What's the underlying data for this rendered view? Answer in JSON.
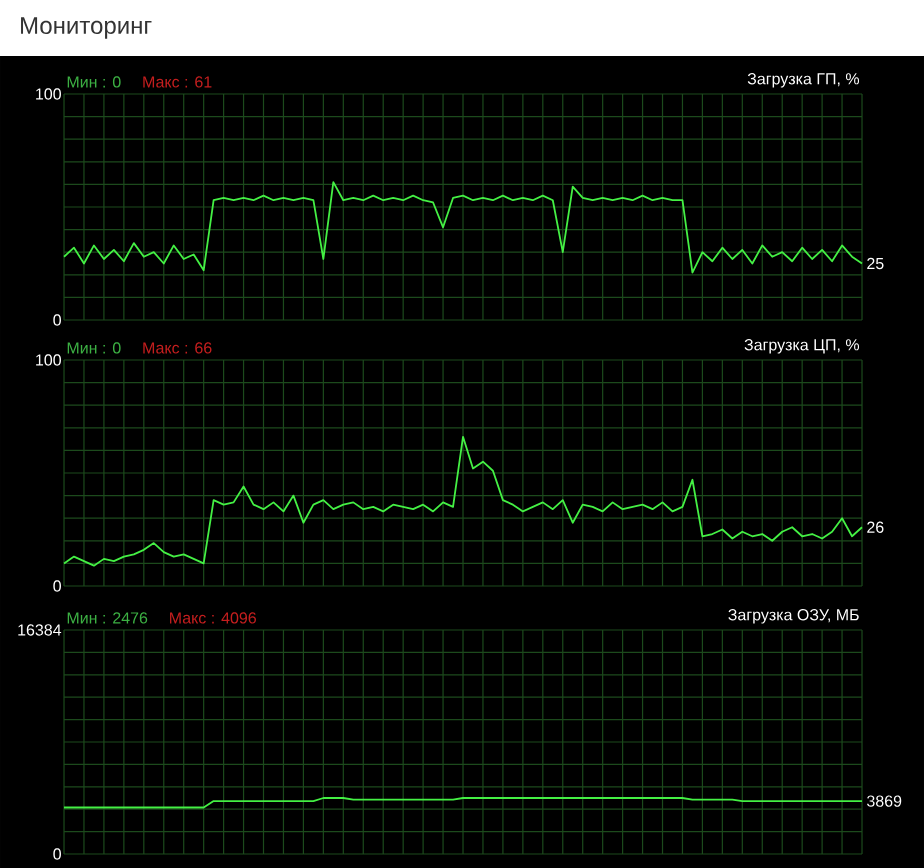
{
  "chart_data": [
    {
      "type": "line",
      "title": "Мониторинг",
      "subtitle": "Загрузка ГП, %",
      "annotations": [
        "Мин : 0",
        "Макс : 61"
      ],
      "grid": true,
      "color": "#44f044",
      "categories": [
        null,
        null,
        null,
        null,
        null,
        null,
        null,
        null,
        null,
        null,
        null,
        null,
        null,
        null,
        null,
        null,
        null,
        null,
        null,
        null,
        null,
        null,
        null,
        null,
        null,
        null,
        null,
        null,
        null,
        null,
        null,
        null,
        null,
        null,
        null,
        null,
        null,
        null,
        null,
        null,
        null,
        null,
        null,
        null,
        null,
        null,
        null,
        null,
        null,
        null,
        null,
        null,
        null,
        null,
        null,
        null,
        null,
        null,
        null,
        null,
        null,
        null,
        null,
        null,
        null,
        null,
        null,
        null,
        null,
        null,
        null,
        null,
        null,
        null,
        null,
        null,
        null,
        null,
        null,
        null,
        null
      ],
      "values": [
        28,
        32,
        25,
        33,
        27,
        31,
        26,
        34,
        28,
        30,
        25,
        33,
        27,
        29,
        22,
        53,
        54,
        53,
        54,
        53,
        55,
        53,
        54,
        53,
        54,
        53,
        27,
        61,
        53,
        54,
        53,
        55,
        53,
        54,
        53,
        55,
        53,
        52,
        41,
        54,
        55,
        53,
        54,
        53,
        55,
        53,
        54,
        53,
        55,
        53,
        30,
        59,
        54,
        53,
        54,
        53,
        54,
        53,
        55,
        53,
        54,
        53,
        53,
        21,
        30,
        26,
        32,
        27,
        31,
        25,
        33,
        28,
        30,
        26,
        32,
        27,
        31,
        26,
        33,
        28,
        25
      ],
      "value_labels": [
        null,
        null,
        null,
        null,
        null,
        null,
        null,
        null,
        null,
        null,
        null,
        null,
        null,
        null,
        null,
        null,
        null,
        null,
        null,
        null,
        null,
        null,
        null,
        null,
        null,
        null,
        null,
        null,
        null,
        null,
        null,
        null,
        null,
        null,
        null,
        null,
        null,
        null,
        null,
        null,
        null,
        null,
        null,
        null,
        null,
        null,
        null,
        null,
        null,
        null,
        null,
        null,
        null,
        null,
        null,
        null,
        null,
        null,
        null,
        null,
        null,
        null,
        null,
        null,
        null,
        null,
        null,
        null,
        null,
        null,
        null,
        null,
        null,
        null,
        null,
        null,
        null,
        null,
        null,
        null,
        "25"
      ],
      "ylim": [
        0,
        100
      ],
      "yticks": [
        0,
        {
          "value": 10,
          "label": null
        },
        {
          "value": 20,
          "label": null
        },
        {
          "value": 30,
          "label": null
        },
        {
          "value": 40,
          "label": null
        },
        {
          "value": 50,
          "label": null
        },
        {
          "value": 60,
          "label": null
        },
        {
          "value": 70,
          "label": null
        },
        {
          "value": 80,
          "label": null
        },
        {
          "value": 90,
          "label": null
        },
        100
      ]
    },
    {
      "type": "line",
      "subtitle": "Загрузка ЦП, %",
      "annotations": [
        "Мин : 0",
        "Макс : 66"
      ],
      "grid": true,
      "color": "#44f044",
      "categories": [
        null,
        null,
        null,
        null,
        null,
        null,
        null,
        null,
        null,
        null,
        null,
        null,
        null,
        null,
        null,
        null,
        null,
        null,
        null,
        null,
        null,
        null,
        null,
        null,
        null,
        null,
        null,
        null,
        null,
        null,
        null,
        null,
        null,
        null,
        null,
        null,
        null,
        null,
        null,
        null,
        null,
        null,
        null,
        null,
        null,
        null,
        null,
        null,
        null,
        null,
        null,
        null,
        null,
        null,
        null,
        null,
        null,
        null,
        null,
        null,
        null,
        null,
        null,
        null,
        null,
        null,
        null,
        null,
        null,
        null,
        null,
        null,
        null,
        null,
        null,
        null,
        null,
        null,
        null,
        null,
        null
      ],
      "values": [
        10,
        13,
        11,
        9,
        12,
        11,
        13,
        14,
        16,
        19,
        15,
        13,
        14,
        12,
        10,
        38,
        36,
        37,
        44,
        36,
        34,
        37,
        33,
        40,
        28,
        36,
        38,
        34,
        36,
        37,
        34,
        35,
        33,
        36,
        35,
        34,
        36,
        33,
        37,
        35,
        66,
        52,
        55,
        51,
        38,
        36,
        33,
        35,
        37,
        34,
        38,
        28,
        36,
        35,
        33,
        37,
        34,
        35,
        36,
        34,
        37,
        33,
        35,
        47,
        22,
        23,
        25,
        21,
        24,
        22,
        23,
        20,
        24,
        26,
        22,
        23,
        21,
        24,
        30,
        22,
        26
      ],
      "value_labels": [
        null,
        null,
        null,
        null,
        null,
        null,
        null,
        null,
        null,
        null,
        null,
        null,
        null,
        null,
        null,
        null,
        null,
        null,
        null,
        null,
        null,
        null,
        null,
        null,
        null,
        null,
        null,
        null,
        null,
        null,
        null,
        null,
        null,
        null,
        null,
        null,
        null,
        null,
        null,
        null,
        null,
        null,
        null,
        null,
        null,
        null,
        null,
        null,
        null,
        null,
        null,
        null,
        null,
        null,
        null,
        null,
        null,
        null,
        null,
        null,
        null,
        null,
        null,
        null,
        null,
        null,
        null,
        null,
        null,
        null,
        null,
        null,
        null,
        null,
        null,
        null,
        null,
        null,
        null,
        null,
        "26"
      ],
      "ylim": [
        0,
        100
      ],
      "yticks": [
        0,
        {
          "value": 10,
          "label": null
        },
        {
          "value": 20,
          "label": null
        },
        {
          "value": 30,
          "label": null
        },
        {
          "value": 40,
          "label": null
        },
        {
          "value": 50,
          "label": null
        },
        {
          "value": 60,
          "label": null
        },
        {
          "value": 70,
          "label": null
        },
        {
          "value": 80,
          "label": null
        },
        {
          "value": 90,
          "label": null
        },
        100
      ]
    },
    {
      "type": "line",
      "subtitle": "Загрузка ОЗУ, МБ",
      "annotations": [
        "Мин : 2476",
        "Макс : 4096"
      ],
      "grid": true,
      "color": "#44f044",
      "categories": [
        null,
        null,
        null,
        null,
        null,
        null,
        null,
        null,
        null,
        null,
        null,
        null,
        null,
        null,
        null,
        null,
        null,
        null,
        null,
        null,
        null,
        null,
        null,
        null,
        null,
        null,
        null,
        null,
        null,
        null,
        null,
        null,
        null,
        null,
        null,
        null,
        null,
        null,
        null,
        null,
        null,
        null,
        null,
        null,
        null,
        null,
        null,
        null,
        null,
        null,
        null,
        null,
        null,
        null,
        null,
        null,
        null,
        null,
        null,
        null,
        null,
        null,
        null,
        null,
        null,
        null,
        null,
        null,
        null,
        null,
        null,
        null,
        null,
        null,
        null,
        null,
        null,
        null,
        null,
        null,
        null
      ],
      "values": [
        3400,
        3400,
        3400,
        3400,
        3400,
        3400,
        3400,
        3400,
        3400,
        3400,
        3400,
        3400,
        3400,
        3400,
        3400,
        3870,
        3870,
        3870,
        3870,
        3870,
        3870,
        3870,
        3870,
        3870,
        3870,
        3870,
        4096,
        4096,
        4096,
        3980,
        3980,
        3980,
        3980,
        3980,
        3980,
        3980,
        3980,
        3980,
        3980,
        3980,
        4096,
        4096,
        4096,
        4096,
        4096,
        4096,
        4096,
        4096,
        4096,
        4096,
        4096,
        4096,
        4096,
        4096,
        4096,
        4096,
        4096,
        4096,
        4096,
        4096,
        4096,
        4096,
        4096,
        3980,
        3980,
        3980,
        3980,
        3980,
        3869,
        3869,
        3869,
        3869,
        3869,
        3869,
        3869,
        3869,
        3869,
        3869,
        3869,
        3869,
        3869
      ],
      "value_labels": [
        null,
        null,
        null,
        null,
        null,
        null,
        null,
        null,
        null,
        null,
        null,
        null,
        null,
        null,
        null,
        null,
        null,
        null,
        null,
        null,
        null,
        null,
        null,
        null,
        null,
        null,
        null,
        null,
        null,
        null,
        null,
        null,
        null,
        null,
        null,
        null,
        null,
        null,
        null,
        null,
        null,
        null,
        null,
        null,
        null,
        null,
        null,
        null,
        null,
        null,
        null,
        null,
        null,
        null,
        null,
        null,
        null,
        null,
        null,
        null,
        null,
        null,
        null,
        null,
        null,
        null,
        null,
        null,
        null,
        null,
        null,
        null,
        null,
        null,
        null,
        null,
        null,
        null,
        null,
        null,
        "3869"
      ],
      "ylim": [
        0,
        16384
      ],
      "yticks": [
        0,
        {
          "value": 1638.4,
          "label": null
        },
        {
          "value": 3276.8,
          "label": null
        },
        {
          "value": 4915.2,
          "label": null
        },
        {
          "value": 6553.6,
          "label": null
        },
        {
          "value": 8192,
          "label": null
        },
        {
          "value": 9830.4,
          "label": null
        },
        {
          "value": 11468.8,
          "label": null
        },
        {
          "value": 13107.2,
          "label": null
        },
        {
          "value": 14745.6,
          "label": null
        },
        16384
      ]
    }
  ]
}
